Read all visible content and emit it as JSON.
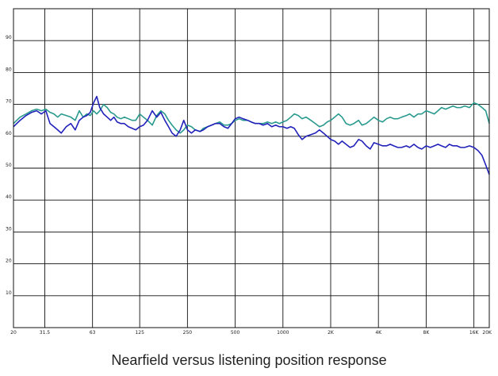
{
  "chart_data": {
    "type": "line",
    "title": "Nearfield versus listening position response",
    "xlabel": "",
    "ylabel": "",
    "x_scale": "log",
    "xlim": [
      20,
      20000
    ],
    "ylim": [
      0,
      100
    ],
    "grid": true,
    "legend": "none",
    "x_ticks": [
      {
        "value": 20,
        "label": "20"
      },
      {
        "value": 31.5,
        "label": "31.5"
      },
      {
        "value": 63,
        "label": "63"
      },
      {
        "value": 125,
        "label": "125"
      },
      {
        "value": 250,
        "label": "250"
      },
      {
        "value": 500,
        "label": "500"
      },
      {
        "value": 1000,
        "label": "1000"
      },
      {
        "value": 2000,
        "label": "2K"
      },
      {
        "value": 4000,
        "label": "4K"
      },
      {
        "value": 8000,
        "label": "8K"
      },
      {
        "value": 16000,
        "label": "16K"
      },
      {
        "value": 20000,
        "label": "20K"
      }
    ],
    "y_ticks": [
      {
        "value": 10,
        "label": "10"
      },
      {
        "value": 20,
        "label": "20"
      },
      {
        "value": 30,
        "label": "30"
      },
      {
        "value": 40,
        "label": "40"
      },
      {
        "value": 50,
        "label": "50"
      },
      {
        "value": 60,
        "label": "60"
      },
      {
        "value": 70,
        "label": "70"
      },
      {
        "value": 80,
        "label": "80"
      },
      {
        "value": 90,
        "label": "90"
      }
    ],
    "series": [
      {
        "color": "#2a9a8e",
        "x": [
          20,
          22,
          24,
          26,
          28,
          30,
          32,
          34,
          36,
          38,
          40,
          43,
          46,
          49,
          52,
          55,
          58,
          61,
          64,
          67,
          70,
          74,
          78,
          82,
          86,
          90,
          95,
          100,
          106,
          112,
          118,
          125,
          132,
          140,
          150,
          160,
          170,
          180,
          190,
          200,
          212,
          225,
          237,
          250,
          265,
          280,
          300,
          315,
          335,
          355,
          375,
          400,
          425,
          450,
          475,
          500,
          530,
          560,
          600,
          630,
          670,
          710,
          750,
          800,
          850,
          900,
          950,
          1000,
          1060,
          1120,
          1180,
          1250,
          1320,
          1400,
          1500,
          1600,
          1700,
          1800,
          1900,
          2000,
          2120,
          2240,
          2360,
          2500,
          2650,
          2800,
          3000,
          3150,
          3350,
          3550,
          3750,
          4000,
          4250,
          4500,
          4750,
          5000,
          5300,
          5600,
          6000,
          6300,
          6700,
          7100,
          7500,
          8000,
          8500,
          9000,
          9500,
          10000,
          10600,
          11200,
          11800,
          12500,
          13200,
          14000,
          15000,
          16000,
          17000,
          18000,
          19000,
          20000
        ],
        "values": [
          64,
          66,
          67,
          68,
          68.5,
          68,
          68.5,
          67.5,
          67,
          66,
          67,
          66.5,
          66,
          65,
          68,
          66,
          67,
          66.5,
          68,
          67,
          68,
          70,
          69,
          67.5,
          67,
          66,
          65.5,
          66,
          65.5,
          65,
          65,
          67,
          66,
          65,
          63.5,
          66.5,
          68,
          67,
          65,
          63.5,
          62,
          61,
          62,
          63.5,
          63,
          62,
          61.5,
          62.5,
          63,
          63.5,
          64,
          64.5,
          63.5,
          63.5,
          64,
          65,
          65.5,
          65,
          65,
          64.5,
          64,
          64,
          64,
          64.5,
          64,
          64.5,
          64,
          64.5,
          65,
          66,
          67,
          66.5,
          65.5,
          66,
          65,
          64,
          63,
          63.5,
          64.5,
          65,
          66,
          67,
          66,
          64,
          63.5,
          64,
          65,
          63.5,
          64,
          65,
          66,
          65,
          64.5,
          65.5,
          66,
          65.5,
          65.5,
          66,
          66.5,
          67,
          66,
          67,
          67,
          68,
          67.5,
          67,
          68,
          69,
          68.5,
          69,
          69.5,
          69,
          69,
          69.5,
          69,
          70.5,
          70,
          69,
          68,
          64
        ]
      },
      {
        "color": "#2222bb",
        "x": [
          20,
          22,
          24,
          26,
          28,
          30,
          32,
          34,
          36,
          38,
          40,
          43,
          46,
          49,
          52,
          55,
          58,
          61,
          64,
          67,
          70,
          74,
          78,
          82,
          86,
          90,
          95,
          100,
          106,
          112,
          118,
          125,
          132,
          140,
          150,
          160,
          170,
          180,
          190,
          200,
          212,
          225,
          237,
          250,
          265,
          280,
          300,
          315,
          335,
          355,
          375,
          400,
          425,
          450,
          475,
          500,
          530,
          560,
          600,
          630,
          670,
          710,
          750,
          800,
          850,
          900,
          950,
          1000,
          1060,
          1120,
          1180,
          1250,
          1320,
          1400,
          1500,
          1600,
          1700,
          1800,
          1900,
          2000,
          2120,
          2240,
          2360,
          2500,
          2650,
          2800,
          3000,
          3150,
          3350,
          3550,
          3750,
          4000,
          4250,
          4500,
          4750,
          5000,
          5300,
          5600,
          6000,
          6300,
          6700,
          7100,
          7500,
          8000,
          8500,
          9000,
          9500,
          10000,
          10600,
          11200,
          11800,
          12500,
          13200,
          14000,
          15000,
          16000,
          17000,
          18000,
          19000,
          20000
        ],
        "values": [
          63,
          65,
          66.5,
          67.5,
          68,
          67,
          68,
          64,
          63,
          62,
          61,
          63,
          64,
          62,
          65,
          66,
          66.5,
          67.5,
          70.5,
          72.5,
          69,
          67,
          66,
          65,
          66,
          64.5,
          64,
          64,
          63,
          62.5,
          62,
          63,
          63.5,
          65,
          68,
          66,
          67.5,
          65,
          63,
          61,
          60,
          62,
          65,
          62,
          61,
          62,
          61.5,
          62,
          63,
          63.5,
          64,
          64,
          63,
          62.5,
          64,
          65.5,
          66,
          65.5,
          65,
          64.5,
          64,
          64,
          63.5,
          64,
          63,
          63.5,
          63,
          63,
          62.5,
          63,
          62.5,
          60.5,
          59,
          60,
          60.5,
          61,
          62,
          61,
          60,
          59,
          58.5,
          57.5,
          58.5,
          57.5,
          56.5,
          57,
          59,
          58.5,
          57,
          56,
          58,
          57.5,
          57,
          57,
          57.5,
          57,
          56.5,
          56.5,
          57,
          56.5,
          57.5,
          56.5,
          56,
          57,
          56.5,
          57,
          57.5,
          57,
          56.5,
          57.5,
          57,
          57,
          56.5,
          56.5,
          57,
          56.5,
          55.5,
          54,
          51,
          48
        ]
      }
    ]
  }
}
